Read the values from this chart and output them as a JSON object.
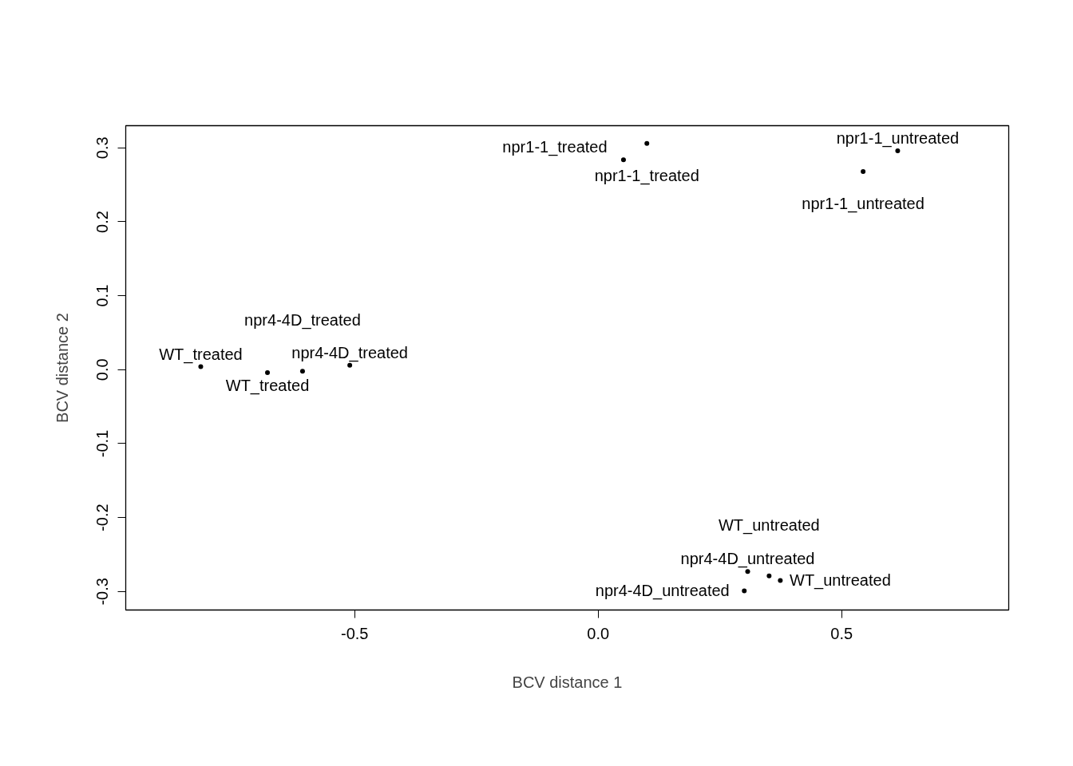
{
  "chart_data": {
    "type": "scatter",
    "marker": "circle",
    "xlabel": "BCV distance 1",
    "ylabel": "BCV distance 2",
    "grid": false,
    "x": [
      0.1,
      0.052,
      0.615,
      0.544,
      -0.816,
      -0.51,
      -0.679,
      -0.607,
      0.307,
      0.3,
      0.374,
      0.351
    ],
    "values": [
      0.306,
      0.284,
      0.296,
      0.268,
      0.004,
      0.006,
      -0.004,
      -0.002,
      -0.273,
      -0.299,
      -0.285,
      -0.279
    ],
    "value_labels": [
      "npr1-1_treated",
      "npr1-1_treated",
      "npr1-1_untreated",
      "npr1-1_untreated",
      "WT_treated",
      "npr4-4D_treated",
      "WT_treated",
      "npr4-4D_treated",
      "npr4-4D_untreated",
      "npr4-4D_untreated",
      "WT_untreated",
      "WT_untreated"
    ],
    "color": "#000000",
    "xlim": [
      -0.97,
      0.843
    ],
    "ylim": [
      -0.325,
      0.33
    ],
    "xticks": [
      {
        "value": -0.5,
        "label": "-0.5"
      },
      {
        "value": 0,
        "label": "0.0"
      },
      {
        "value": 0.5,
        "label": "0.5"
      }
    ],
    "yticks": [
      {
        "value": -0.3,
        "label": "-0.3"
      },
      {
        "value": -0.2,
        "label": "-0.2"
      },
      {
        "value": -0.1,
        "label": "-0.1"
      },
      {
        "value": 0,
        "label": "0.0"
      },
      {
        "value": 0.1,
        "label": "0.1"
      },
      {
        "value": 0.2,
        "label": "0.2"
      },
      {
        "value": 0.3,
        "label": "0.3"
      }
    ]
  }
}
